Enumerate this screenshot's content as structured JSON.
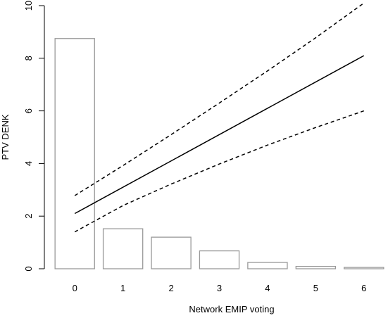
{
  "chart_data": {
    "type": "bar",
    "title": "",
    "xlabel": "Network EMIP voting",
    "ylabel": "PTV DENK",
    "xlim": [
      -0.5,
      6.5
    ],
    "ylim": [
      0,
      10
    ],
    "xticks": [
      "0",
      "1",
      "2",
      "3",
      "4",
      "5",
      "6"
    ],
    "yticks": [
      "0",
      "2",
      "4",
      "6",
      "8",
      "10"
    ],
    "grid": false,
    "legend": "none",
    "bars": {
      "categories": [
        0,
        1,
        2,
        3,
        4,
        5,
        6
      ],
      "values": [
        8.75,
        1.52,
        1.2,
        0.68,
        0.24,
        0.09,
        0.05
      ],
      "fill": "#ffffff",
      "stroke": "#999999"
    },
    "lines": [
      {
        "style": "solid",
        "x": [
          0,
          6
        ],
        "y": [
          2.1,
          8.1
        ],
        "color": "#000000"
      },
      {
        "style": "dashed",
        "x": [
          0,
          1,
          2,
          3,
          4,
          5,
          6
        ],
        "y": [
          2.78,
          3.92,
          5.1,
          6.3,
          7.52,
          8.78,
          10.1
        ],
        "color": "#000000"
      },
      {
        "style": "dashed",
        "x": [
          0,
          1,
          2,
          3,
          4,
          5,
          6
        ],
        "y": [
          1.4,
          2.4,
          3.22,
          3.98,
          4.7,
          5.37,
          6.0
        ],
        "color": "#000000"
      }
    ]
  }
}
